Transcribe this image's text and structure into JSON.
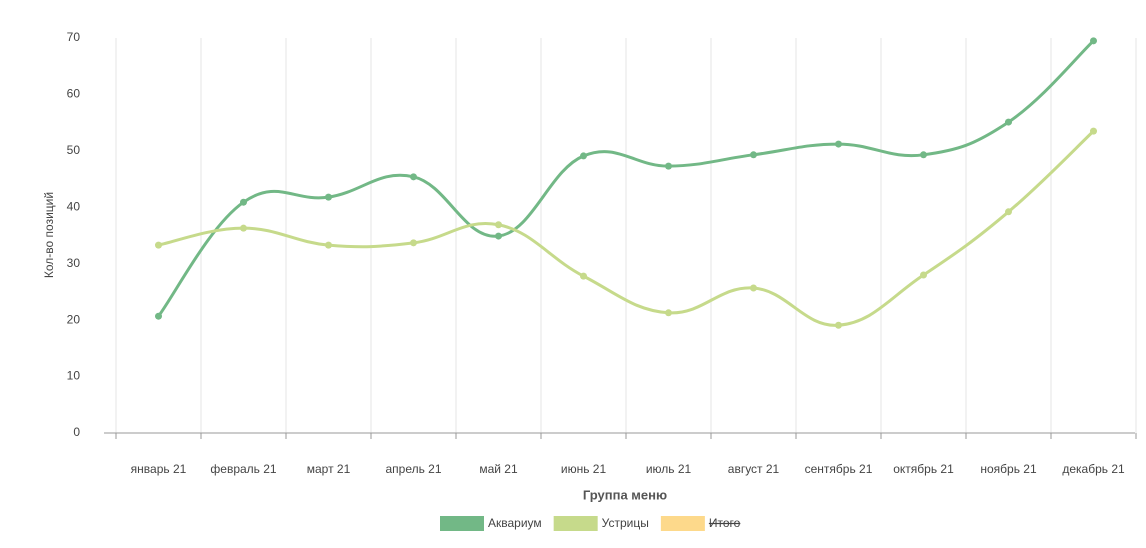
{
  "chart_data": {
    "type": "line",
    "categories": [
      "январь 21",
      "февраль 21",
      "март 21",
      "апрель 21",
      "май 21",
      "июнь 21",
      "июль 21",
      "август 21",
      "сентябрь 21",
      "октябрь 21",
      "ноябрь 21",
      "декабрь 21"
    ],
    "series": [
      {
        "name": "Аквариум",
        "color": "#72b886",
        "values": [
          20.7,
          40.9,
          41.8,
          45.4,
          34.9,
          49.1,
          47.3,
          49.3,
          51.2,
          49.3,
          55.1,
          69.5
        ]
      },
      {
        "name": "Устрицы",
        "color": "#c6da8b",
        "values": [
          33.3,
          36.3,
          33.3,
          33.7,
          36.9,
          27.8,
          21.3,
          25.7,
          19.1,
          28.0,
          39.2,
          53.5
        ]
      },
      {
        "name": "Итого",
        "color": "#fdd98b",
        "hidden": true,
        "values": [
          null,
          null,
          null,
          null,
          null,
          null,
          null,
          null,
          null,
          null,
          null,
          null
        ]
      }
    ],
    "xlabel": "Группа меню",
    "ylabel": "Кол-во позиций",
    "ylim": [
      0,
      70
    ],
    "yticks": [
      0,
      10,
      20,
      30,
      40,
      50,
      60,
      70
    ],
    "grid": true,
    "legend": "bottom"
  }
}
